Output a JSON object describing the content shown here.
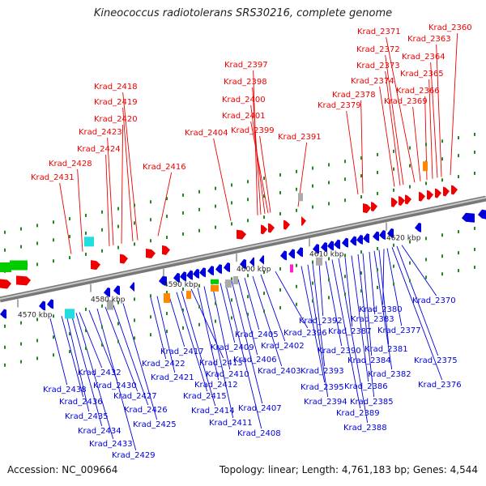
{
  "title": "Kineococcus radiotolerans SRS30216, complete genome",
  "footer": {
    "accession": "Accession: NC_009664",
    "summary": "Topology: linear; Length: 4,761,183 bp; Genes: 4,544"
  },
  "colors": {
    "forward": "#ee0000",
    "reverse": "#0000dd",
    "rna": "#00cc00",
    "feature_cyan": "#22dddd",
    "feature_orange": "#ff8800",
    "feature_gray": "#aaaaaa",
    "feature_magenta": "#ff22cc",
    "tick": "#228822",
    "backbone": "#999999"
  },
  "ticks": [
    {
      "label": "4570 kbp",
      "kbp": 4570
    },
    {
      "label": "4580 kbp",
      "kbp": 4580
    },
    {
      "label": "4590 kbp",
      "kbp": 4590
    },
    {
      "label": "4600 kbp",
      "kbp": 4600
    },
    {
      "label": "4610 kbp",
      "kbp": 4610
    },
    {
      "label": "4620 kbp",
      "kbp": 4620
    }
  ],
  "forward_genes": [
    "Krad_2431",
    "Krad_2428",
    "Krad_2424",
    "Krad_2423",
    "Krad_2420",
    "Krad_2419",
    "Krad_2418",
    "Krad_2416",
    "Krad_2404",
    "Krad_2397",
    "Krad_2398",
    "Krad_2400",
    "Krad_2401",
    "Krad_2399",
    "Krad_2391",
    "Krad_2379",
    "Krad_2378",
    "Krad_2374",
    "Krad_2373",
    "Krad_2372",
    "Krad_2371",
    "Krad_2369",
    "Krad_2366",
    "Krad_2365",
    "Krad_2364",
    "Krad_2363",
    "Krad_2360"
  ],
  "reverse_genes": [
    "Krad_2438",
    "Krad_2436",
    "Krad_2435",
    "Krad_2434",
    "Krad_2433",
    "Krad_2432",
    "Krad_2430",
    "Krad_2429",
    "Krad_2427",
    "Krad_2426",
    "Krad_2425",
    "Krad_2422",
    "Krad_2421",
    "Krad_2417",
    "Krad_2415",
    "Krad_2414",
    "Krad_2413",
    "Krad_2412",
    "Krad_2411",
    "Krad_2410",
    "Krad_2409",
    "Krad_2408",
    "Krad_2407",
    "Krad_2406",
    "Krad_2405",
    "Krad_2403",
    "Krad_2402",
    "Krad_2396",
    "Krad_2395",
    "Krad_2394",
    "Krad_2393",
    "Krad_2392",
    "Krad_2390",
    "Krad_2389",
    "Krad_2388",
    "Krad_2387",
    "Krad_2386",
    "Krad_2385",
    "Krad_2384",
    "Krad_2383",
    "Krad_2382",
    "Krad_2381",
    "Krad_2380",
    "Krad_2377",
    "Krad_2376",
    "Krad_2375",
    "Krad_2370"
  ]
}
